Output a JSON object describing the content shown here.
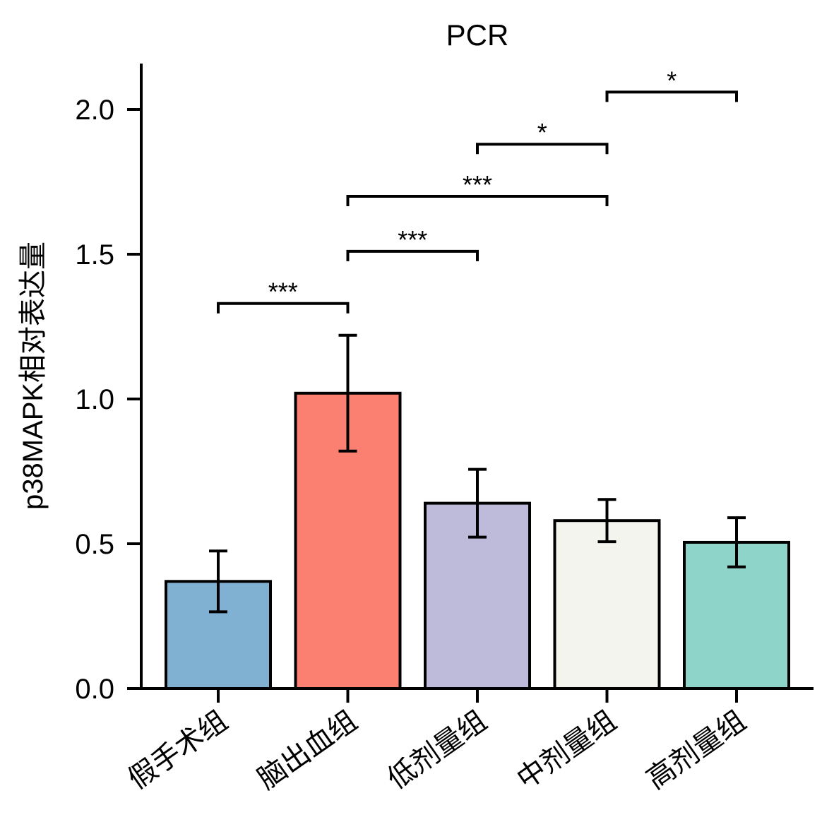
{
  "chart_data": {
    "type": "bar",
    "title": "PCR",
    "xlabel": "",
    "ylabel": "p38MAPK相对表达量",
    "ylim": [
      0,
      2.15
    ],
    "yticks": [
      0.0,
      0.5,
      1.0,
      1.5,
      2.0
    ],
    "ytick_labels": [
      "0.0",
      "0.5",
      "1.0",
      "1.5",
      "2.0"
    ],
    "categories": [
      "假手术组",
      "脑出血组",
      "低剂量组",
      "中剂量组",
      "高剂量组"
    ],
    "values": [
      0.37,
      1.02,
      0.64,
      0.58,
      0.505
    ],
    "errors": [
      0.105,
      0.2,
      0.117,
      0.073,
      0.085
    ],
    "colors": [
      "#80b1d3",
      "#fb8072",
      "#bebada",
      "#f4f4ef",
      "#8fd4c8"
    ],
    "significance": [
      {
        "from": 0,
        "to": 1,
        "y": 1.33,
        "label": "***"
      },
      {
        "from": 1,
        "to": 2,
        "y": 1.51,
        "label": "***"
      },
      {
        "from": 1,
        "to": 3,
        "y": 1.7,
        "label": "***"
      },
      {
        "from": 2,
        "to": 3,
        "y": 1.88,
        "label": "*"
      },
      {
        "from": 3,
        "to": 4,
        "y": 2.06,
        "label": "*"
      }
    ]
  }
}
